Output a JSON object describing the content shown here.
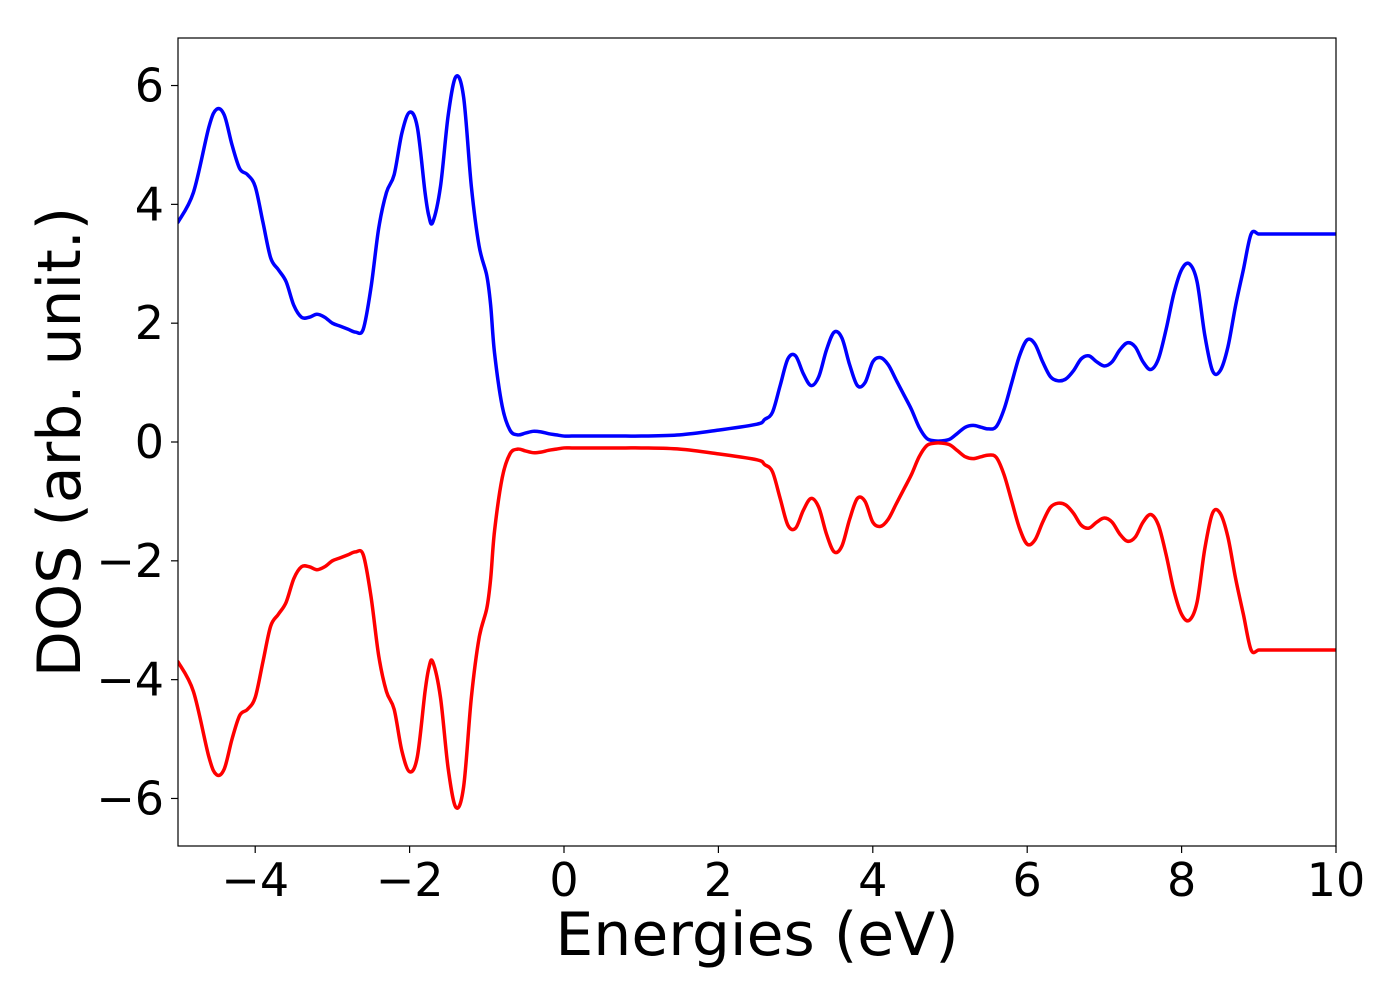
{
  "chart_data": {
    "type": "line",
    "title": "",
    "xlabel": "Energies (eV)",
    "ylabel": "DOS (arb. unit.)",
    "xlim": [
      -5,
      10
    ],
    "ylim": [
      -6.8,
      6.8
    ],
    "xticks": [
      -4,
      -2,
      0,
      2,
      4,
      6,
      8,
      10
    ],
    "xtick_labels": [
      "−4",
      "−2",
      "0",
      "2",
      "4",
      "6",
      "8",
      "10"
    ],
    "yticks": [
      6,
      4,
      2,
      0,
      -2,
      -4,
      -6
    ],
    "ytick_labels": [
      "6",
      "4",
      "2",
      "0",
      "−2",
      "−4",
      "−6"
    ],
    "grid": false,
    "series": [
      {
        "color": "#0000ff",
        "x": [
          -5.0,
          -4.8,
          -4.6,
          -4.5,
          -4.4,
          -4.3,
          -4.2,
          -4.1,
          -4.0,
          -3.9,
          -3.8,
          -3.7,
          -3.6,
          -3.5,
          -3.4,
          -3.3,
          -3.2,
          -3.1,
          -3.0,
          -2.9,
          -2.8,
          -2.7,
          -2.6,
          -2.5,
          -2.4,
          -2.3,
          -2.2,
          -2.1,
          -2.0,
          -1.9,
          -1.8,
          -1.75,
          -1.7,
          -1.6,
          -1.5,
          -1.4,
          -1.3,
          -1.2,
          -1.1,
          -1.0,
          -0.95,
          -0.9,
          -0.8,
          -0.7,
          -0.6,
          -0.5,
          -0.4,
          -0.3,
          -0.2,
          -0.1,
          0.0,
          0.1,
          0.2,
          0.3,
          0.5,
          0.8,
          1.0,
          1.5,
          2.0,
          2.5,
          2.6,
          2.7,
          2.8,
          2.9,
          3.0,
          3.1,
          3.2,
          3.3,
          3.4,
          3.5,
          3.6,
          3.7,
          3.8,
          3.9,
          4.0,
          4.1,
          4.2,
          4.3,
          4.4,
          4.5,
          4.6,
          4.7,
          4.8,
          4.9,
          5.0,
          5.1,
          5.2,
          5.3,
          5.4,
          5.5,
          5.6,
          5.7,
          5.8,
          5.9,
          6.0,
          6.1,
          6.2,
          6.3,
          6.4,
          6.5,
          6.6,
          6.7,
          6.8,
          6.9,
          7.0,
          7.1,
          7.2,
          7.3,
          7.4,
          7.5,
          7.6,
          7.7,
          7.8,
          7.9,
          8.0,
          8.1,
          8.2,
          8.3,
          8.4,
          8.5,
          8.6,
          8.7,
          8.8,
          8.9,
          9.0,
          9.1,
          9.2,
          9.3,
          9.4,
          9.5,
          9.6,
          9.7,
          9.8,
          9.9,
          10.0
        ],
        "y": [
          3.7,
          4.2,
          5.3,
          5.6,
          5.5,
          5.0,
          4.6,
          4.5,
          4.3,
          3.7,
          3.1,
          2.9,
          2.7,
          2.3,
          2.1,
          2.1,
          2.15,
          2.1,
          2.0,
          1.95,
          1.9,
          1.85,
          1.9,
          2.6,
          3.6,
          4.2,
          4.5,
          5.2,
          5.55,
          5.3,
          4.2,
          3.8,
          3.7,
          4.3,
          5.5,
          6.15,
          5.8,
          4.3,
          3.3,
          2.8,
          2.3,
          1.5,
          0.6,
          0.2,
          0.12,
          0.15,
          0.18,
          0.17,
          0.14,
          0.12,
          0.1,
          0.1,
          0.1,
          0.1,
          0.1,
          0.1,
          0.1,
          0.12,
          0.2,
          0.3,
          0.38,
          0.5,
          0.95,
          1.4,
          1.45,
          1.15,
          0.95,
          1.1,
          1.55,
          1.85,
          1.75,
          1.3,
          0.95,
          1.0,
          1.35,
          1.42,
          1.3,
          1.05,
          0.8,
          0.55,
          0.25,
          0.06,
          0.02,
          0.02,
          0.05,
          0.15,
          0.25,
          0.28,
          0.25,
          0.22,
          0.26,
          0.55,
          1.0,
          1.45,
          1.72,
          1.65,
          1.35,
          1.1,
          1.03,
          1.06,
          1.2,
          1.4,
          1.45,
          1.35,
          1.28,
          1.35,
          1.55,
          1.67,
          1.6,
          1.35,
          1.22,
          1.4,
          1.9,
          2.5,
          2.9,
          3.0,
          2.7,
          1.8,
          1.2,
          1.2,
          1.6,
          2.3,
          2.9,
          3.5,
          3.5,
          3.5,
          3.5,
          3.5,
          3.5,
          3.5,
          3.5,
          3.5,
          3.5,
          3.5,
          3.5
        ]
      },
      {
        "color": "#ff0000",
        "x": [
          -5.0,
          -4.8,
          -4.6,
          -4.5,
          -4.4,
          -4.3,
          -4.2,
          -4.1,
          -4.0,
          -3.9,
          -3.8,
          -3.7,
          -3.6,
          -3.5,
          -3.4,
          -3.3,
          -3.2,
          -3.1,
          -3.0,
          -2.9,
          -2.8,
          -2.7,
          -2.6,
          -2.5,
          -2.4,
          -2.3,
          -2.2,
          -2.1,
          -2.0,
          -1.9,
          -1.8,
          -1.75,
          -1.7,
          -1.6,
          -1.5,
          -1.4,
          -1.3,
          -1.2,
          -1.1,
          -1.0,
          -0.95,
          -0.9,
          -0.8,
          -0.7,
          -0.6,
          -0.5,
          -0.4,
          -0.3,
          -0.2,
          -0.1,
          0.0,
          0.1,
          0.2,
          0.3,
          0.5,
          0.8,
          1.0,
          1.5,
          2.0,
          2.5,
          2.6,
          2.7,
          2.8,
          2.9,
          3.0,
          3.1,
          3.2,
          3.3,
          3.4,
          3.5,
          3.6,
          3.7,
          3.8,
          3.9,
          4.0,
          4.1,
          4.2,
          4.3,
          4.4,
          4.5,
          4.6,
          4.7,
          4.8,
          4.9,
          5.0,
          5.1,
          5.2,
          5.3,
          5.4,
          5.5,
          5.6,
          5.7,
          5.8,
          5.9,
          6.0,
          6.1,
          6.2,
          6.3,
          6.4,
          6.5,
          6.6,
          6.7,
          6.8,
          6.9,
          7.0,
          7.1,
          7.2,
          7.3,
          7.4,
          7.5,
          7.6,
          7.7,
          7.8,
          7.9,
          8.0,
          8.1,
          8.2,
          8.3,
          8.4,
          8.5,
          8.6,
          8.7,
          8.8,
          8.9,
          9.0,
          9.1,
          9.2,
          9.3,
          9.4,
          9.5,
          9.6,
          9.7,
          9.8,
          9.9,
          10.0
        ],
        "y": [
          -3.7,
          -4.2,
          -5.3,
          -5.6,
          -5.5,
          -5.0,
          -4.6,
          -4.5,
          -4.3,
          -3.7,
          -3.1,
          -2.9,
          -2.7,
          -2.3,
          -2.1,
          -2.1,
          -2.15,
          -2.1,
          -2.0,
          -1.95,
          -1.9,
          -1.85,
          -1.9,
          -2.6,
          -3.6,
          -4.2,
          -4.5,
          -5.2,
          -5.55,
          -5.3,
          -4.2,
          -3.8,
          -3.7,
          -4.3,
          -5.5,
          -6.15,
          -5.8,
          -4.3,
          -3.3,
          -2.8,
          -2.3,
          -1.5,
          -0.6,
          -0.2,
          -0.12,
          -0.15,
          -0.18,
          -0.17,
          -0.14,
          -0.12,
          -0.1,
          -0.1,
          -0.1,
          -0.1,
          -0.1,
          -0.1,
          -0.1,
          -0.12,
          -0.2,
          -0.3,
          -0.38,
          -0.5,
          -0.95,
          -1.4,
          -1.45,
          -1.15,
          -0.95,
          -1.1,
          -1.55,
          -1.85,
          -1.75,
          -1.3,
          -0.95,
          -1.0,
          -1.35,
          -1.42,
          -1.3,
          -1.05,
          -0.8,
          -0.55,
          -0.25,
          -0.06,
          -0.02,
          -0.02,
          -0.05,
          -0.15,
          -0.25,
          -0.28,
          -0.25,
          -0.22,
          -0.26,
          -0.55,
          -1.0,
          -1.45,
          -1.72,
          -1.65,
          -1.35,
          -1.1,
          -1.03,
          -1.06,
          -1.2,
          -1.4,
          -1.45,
          -1.35,
          -1.28,
          -1.35,
          -1.55,
          -1.67,
          -1.6,
          -1.35,
          -1.22,
          -1.4,
          -1.9,
          -2.5,
          -2.9,
          -3.0,
          -2.7,
          -1.8,
          -1.2,
          -1.2,
          -1.6,
          -2.3,
          -2.9,
          -3.5,
          -3.5,
          -3.5,
          -3.5,
          -3.5,
          -3.5,
          -3.5,
          -3.5,
          -3.5,
          -3.5,
          -3.5,
          -3.5
        ]
      }
    ]
  }
}
